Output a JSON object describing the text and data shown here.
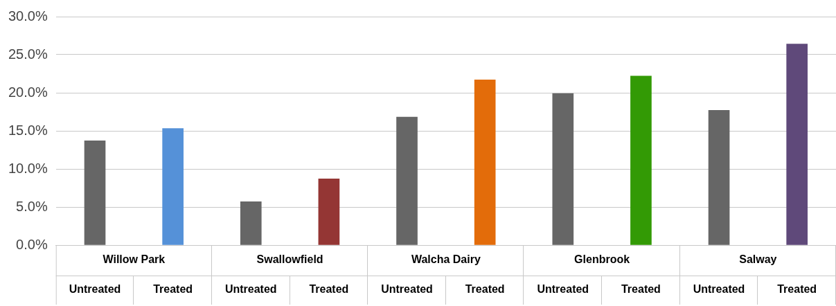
{
  "chart_data": {
    "type": "bar",
    "categories": [
      "Untreated",
      "Treated",
      "Untreated",
      "Treated",
      "Untreated",
      "Treated",
      "Untreated",
      "Treated",
      "Untreated",
      "Treated"
    ],
    "values": [
      13.7,
      15.3,
      5.7,
      8.7,
      16.8,
      21.7,
      19.9,
      22.2,
      17.7,
      26.4
    ],
    "colors": [
      "#666666",
      "#5591d8",
      "#666666",
      "#943634",
      "#666666",
      "#e36c0a",
      "#666666",
      "#339a05",
      "#666666",
      "#5f497a"
    ],
    "annotations": [
      "Willow Park",
      "Swallowfield",
      "Walcha Dairy",
      "Glenbrook",
      "Salway"
    ],
    "ylim": [
      0,
      30
    ],
    "yticks": [
      {
        "value": 0,
        "label": "0.0%"
      },
      {
        "value": 5,
        "label": "5.0%"
      },
      {
        "value": 10,
        "label": "10.0%"
      },
      {
        "value": 15,
        "label": "15.0%"
      },
      {
        "value": 20,
        "label": "20.0%"
      },
      {
        "value": 25,
        "label": "25.0%"
      },
      {
        "value": 30,
        "label": "30.0%"
      }
    ],
    "grid": "y",
    "legend": false
  }
}
